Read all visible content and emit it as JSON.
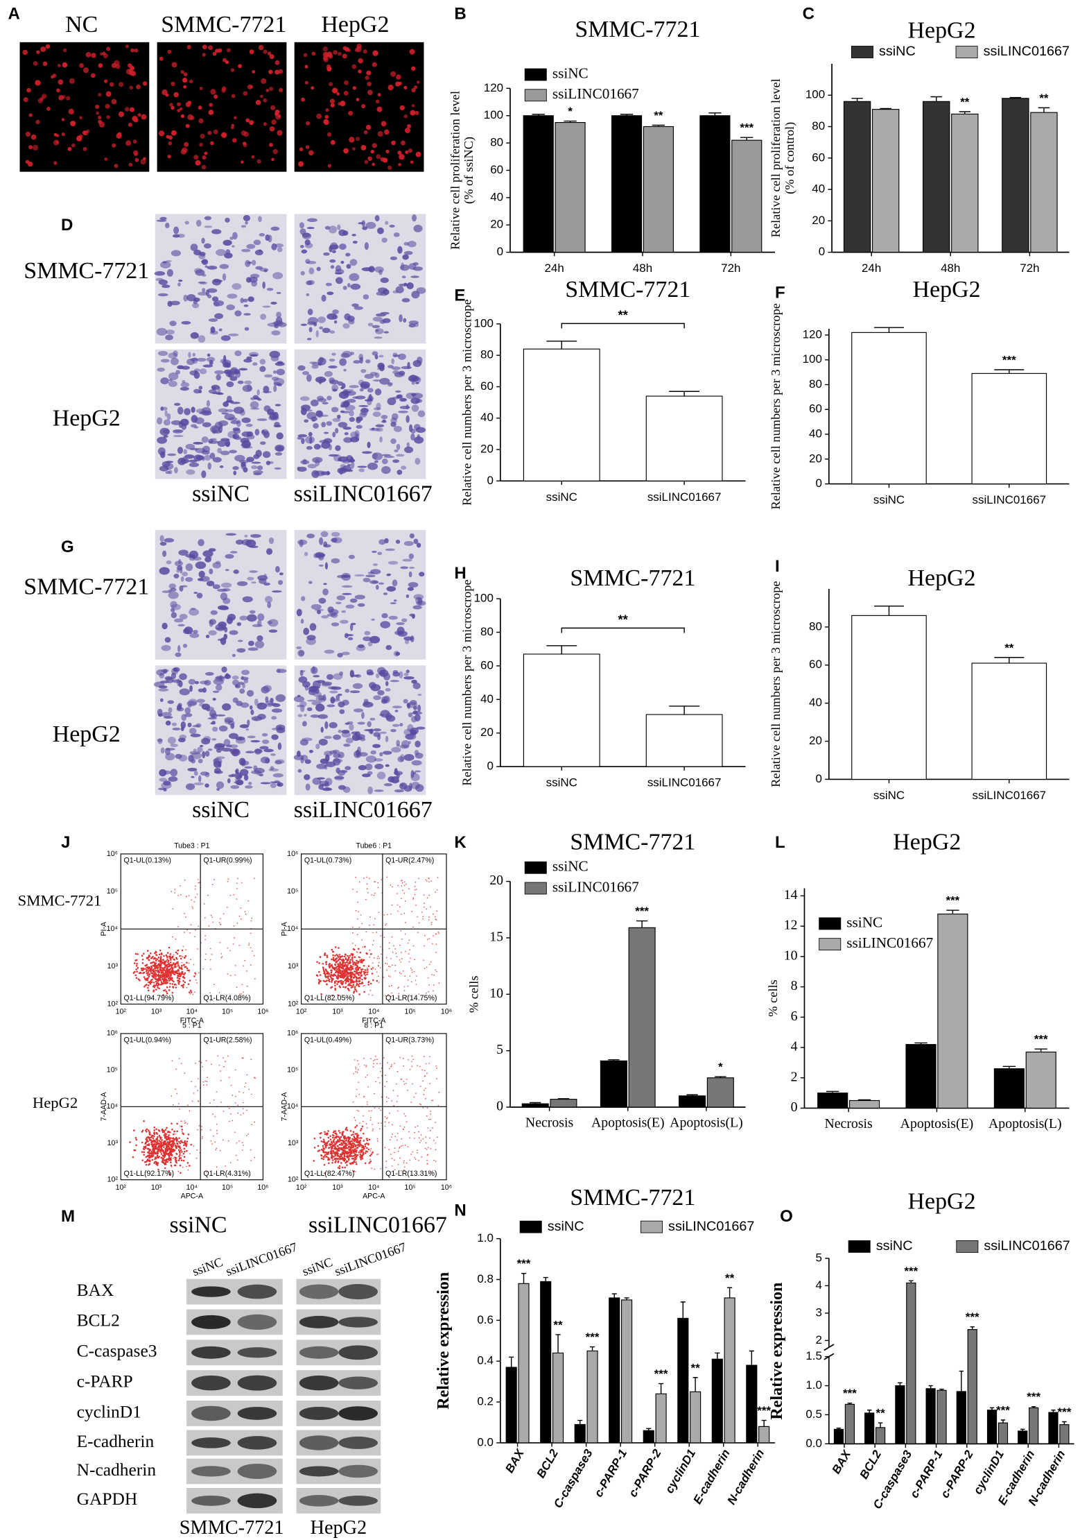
{
  "panel_labels": [
    "A",
    "B",
    "C",
    "D",
    "E",
    "F",
    "G",
    "H",
    "I",
    "J",
    "K",
    "L",
    "M",
    "N",
    "O"
  ],
  "images": {
    "A": {
      "labels": [
        "NC",
        "SMMC-7721",
        "HepG2"
      ]
    },
    "D": {
      "rows": [
        "SMMC-7721",
        "HepG2"
      ],
      "cols": [
        "ssiNC",
        "ssiLINC01667"
      ]
    },
    "G": {
      "rows": [
        "SMMC-7721",
        "HepG2"
      ],
      "cols": [
        "ssiNC",
        "ssiLINC01667"
      ]
    }
  },
  "flow": {
    "rows": [
      "SMMC-7721",
      "HepG2"
    ],
    "ticks": [
      "10²",
      "10³",
      "10⁴",
      "10⁵",
      "10⁶"
    ],
    "plots": [
      {
        "title": "Tube3 : P1",
        "xlabel": "FITC-A",
        "ylabel": "PI-A",
        "quadrants": [
          "Q1-UL(0.13%)",
          "Q1-UR(0.99%)",
          "Q1-LL(94.79%)",
          "Q1-LR(4.08%)"
        ]
      },
      {
        "title": "Tube6 : P1",
        "xlabel": "FITC-A",
        "ylabel": "PI-A",
        "quadrants": [
          "Q1-UL(0.73%)",
          "Q1-UR(2.47%)",
          "Q1-LL(82.05%)",
          "Q1-LR(14.75%)"
        ]
      },
      {
        "title": "5 : P1",
        "xlabel": "APC-A",
        "ylabel": "7-AAD-A",
        "quadrants": [
          "Q1-UL(0.94%)",
          "Q1-UR(2.58%)",
          "Q1-LL(92.17%)",
          "Q1-LR(4.31%)"
        ]
      },
      {
        "title": "8 : P1",
        "xlabel": "APC-A",
        "ylabel": "7-AAD-A",
        "quadrants": [
          "Q1-UL(0.49%)",
          "Q1-UR(3.73%)",
          "Q1-LL(82.47%)",
          "Q1-LR(13.31%)"
        ]
      }
    ]
  },
  "western": {
    "groups": [
      "ssiNC",
      "ssiLINC01667"
    ],
    "lanes": [
      "ssiNC",
      "ssiLINC01667"
    ],
    "proteins": [
      "BAX",
      "BCL2",
      "C-caspase3",
      "c-PARP",
      "cyclinD1",
      "E-cadherin",
      "N-cadherin",
      "GAPDH"
    ],
    "cells": [
      "SMMC-7721",
      "HepG2"
    ]
  },
  "chart_data": [
    {
      "type": "bar",
      "title": "SMMC-7721",
      "ylabel": [
        "Relative cell proliferation level",
        "(% of ssiNC)"
      ],
      "categories": [
        "24h",
        "48h",
        "72h"
      ],
      "series": [
        {
          "name": "ssiNC",
          "color": "#000000",
          "values": [
            100,
            100,
            100
          ],
          "errors": [
            1,
            1,
            2
          ]
        },
        {
          "name": "ssiLINC01667",
          "color": "#9a9a9a",
          "values": [
            95,
            92,
            82
          ],
          "errors": [
            1,
            1,
            2
          ]
        }
      ],
      "significance": [
        "*",
        "**",
        "***"
      ],
      "ylim": [
        0,
        120
      ],
      "yticks": [
        0,
        20,
        40,
        60,
        80,
        100,
        120
      ],
      "legend": "upper left"
    },
    {
      "type": "bar",
      "title": "HepG2",
      "ylabel": [
        "Relative cell proliferation level",
        "(% of control)"
      ],
      "categories": [
        "24h",
        "48h",
        "72h"
      ],
      "series": [
        {
          "name": "ssiNC",
          "color": "#333333",
          "values": [
            96,
            96,
            98
          ],
          "errors": [
            2,
            3,
            0.5
          ]
        },
        {
          "name": "ssiLINC01667",
          "color": "#aaaaaa",
          "values": [
            91,
            88,
            89
          ],
          "errors": [
            0.5,
            1.5,
            3
          ]
        }
      ],
      "significance": [
        null,
        "**",
        "**"
      ],
      "ylim": [
        0,
        120
      ],
      "yticks": [
        0,
        20,
        40,
        60,
        80,
        100
      ],
      "legend": "top"
    },
    {
      "type": "bar",
      "title": "SMMC-7721",
      "ylabel": [
        "Relative cell  numbers per 3 microscrope"
      ],
      "categories": [
        "ssiNC",
        "ssiLINC01667"
      ],
      "values": [
        84,
        54
      ],
      "errors": [
        5,
        3
      ],
      "color": "#ffffff",
      "significance": [
        null,
        "**"
      ],
      "bracket": true,
      "ylim": [
        0,
        100
      ],
      "yticks": [
        0,
        20,
        40,
        60,
        80,
        100
      ]
    },
    {
      "type": "bar",
      "title": "HepG2",
      "ylabel": [
        "Relative cell  numbers per 3 microscrope"
      ],
      "categories": [
        "ssiNC",
        "ssiLINC01667"
      ],
      "values": [
        122,
        89
      ],
      "errors": [
        4,
        3
      ],
      "color": "#ffffff",
      "significance": [
        null,
        "***"
      ],
      "bracket": false,
      "ylim": [
        0,
        125
      ],
      "yticks": [
        0,
        20,
        40,
        60,
        80,
        100,
        120
      ]
    },
    {
      "type": "bar",
      "title": "SMMC-7721",
      "ylabel": [
        "Relative cell  numbers per 3 microscrope"
      ],
      "categories": [
        "ssiNC",
        "ssiLINC01667"
      ],
      "values": [
        67,
        31
      ],
      "errors": [
        5,
        5
      ],
      "color": "#ffffff",
      "significance": [
        null,
        "**"
      ],
      "bracket": true,
      "ylim": [
        0,
        100
      ],
      "yticks": [
        0,
        20,
        40,
        60,
        80,
        100
      ]
    },
    {
      "type": "bar",
      "title": "HepG2",
      "ylabel": [
        "Relative cell  numbers per 3 microscrope"
      ],
      "categories": [
        "ssiNC",
        "ssiLINC01667"
      ],
      "values": [
        86,
        61
      ],
      "errors": [
        5,
        3
      ],
      "color": "#ffffff",
      "significance": [
        null,
        "**"
      ],
      "bracket": false,
      "ylim": [
        0,
        100
      ],
      "yticks": [
        0,
        20,
        40,
        60,
        80
      ]
    },
    {
      "type": "bar",
      "title": "SMMC-7721",
      "ylabel": [
        "% cells"
      ],
      "categories": [
        "Necrosis",
        "Apoptosis(E)",
        "Apoptosis(L)"
      ],
      "series": [
        {
          "name": "ssiNC",
          "color": "#000000",
          "values": [
            0.3,
            4.1,
            1.0
          ],
          "errors": [
            0.1,
            0.1,
            0.1
          ]
        },
        {
          "name": "ssiLINC01667",
          "color": "#777777",
          "values": [
            0.7,
            15.9,
            2.6
          ],
          "errors": [
            0.05,
            0.6,
            0.1
          ]
        }
      ],
      "significance": [
        null,
        "***",
        "*"
      ],
      "ylim": [
        0,
        20
      ],
      "yticks": [
        0,
        5,
        10,
        15,
        20
      ],
      "legend": "upper left"
    },
    {
      "type": "bar",
      "title": "HepG2",
      "ylabel": [
        "% cells"
      ],
      "categories": [
        "Necrosis",
        "Apoptosis(E)",
        "Apoptosis(L)"
      ],
      "series": [
        {
          "name": "ssiNC",
          "color": "#000000",
          "values": [
            1.0,
            4.2,
            2.6
          ],
          "errors": [
            0.1,
            0.1,
            0.15
          ]
        },
        {
          "name": "ssiLINC01667",
          "color": "#aaaaaa",
          "values": [
            0.5,
            12.8,
            3.7
          ],
          "errors": [
            0.05,
            0.25,
            0.2
          ]
        }
      ],
      "significance": [
        null,
        "***",
        "***"
      ],
      "ylim": [
        0,
        14.5
      ],
      "yticks": [
        0,
        2,
        4,
        6,
        8,
        10,
        12,
        14
      ],
      "legend": "upper left"
    },
    {
      "type": "bar",
      "title": "SMMC-7721",
      "ylabel": [
        "Relative expression"
      ],
      "categories": [
        "BAX",
        "BCL2",
        "C-caspase3",
        "c-PARP-1",
        "c-PARP-2",
        "cyclinD1",
        "E-cadherin",
        "N-cadherin"
      ],
      "series": [
        {
          "name": "ssiNC",
          "color": "#000000",
          "values": [
            0.37,
            0.79,
            0.09,
            0.71,
            0.06,
            0.61,
            0.41,
            0.38
          ],
          "errors": [
            0.05,
            0.02,
            0.02,
            0.02,
            0.01,
            0.08,
            0.03,
            0.07
          ]
        },
        {
          "name": "ssiLINC01667",
          "color": "#aaaaaa",
          "values": [
            0.78,
            0.44,
            0.45,
            0.7,
            0.24,
            0.25,
            0.71,
            0.08
          ],
          "errors": [
            0.05,
            0.09,
            0.02,
            0.01,
            0.05,
            0.07,
            0.05,
            0.03
          ]
        }
      ],
      "significance": [
        "***",
        "**",
        "***",
        null,
        "***",
        "**",
        "**",
        "***"
      ],
      "ylim": [
        0,
        1.0
      ],
      "yticks": [
        {
          "value": 0,
          "label": "0.0"
        },
        0.2,
        0.4,
        0.6,
        0.8,
        {
          "value": 1,
          "label": "1.0"
        }
      ],
      "legend": "top",
      "xtick_rotation": -60
    },
    {
      "type": "bar",
      "title": "HepG2",
      "ylabel": [
        "Relative expression"
      ],
      "categories": [
        "BAX",
        "BCL2",
        "C-caspase3",
        "c-PARP-1",
        "c-PARP-2",
        "cyclinD1",
        "E-cadherin",
        "N-cadherin"
      ],
      "series": [
        {
          "name": "ssiNC",
          "color": "#000000",
          "values": [
            0.25,
            0.53,
            1.0,
            0.95,
            0.9,
            0.58,
            0.22,
            0.54
          ],
          "errors": [
            0.02,
            0.05,
            0.05,
            0.05,
            0.35,
            0.04,
            0.03,
            0.04
          ]
        },
        {
          "name": "ssiLINC01667",
          "color": "#777777",
          "values": [
            0.68,
            0.28,
            4.1,
            0.92,
            2.4,
            0.36,
            0.62,
            0.33
          ],
          "errors": [
            0.02,
            0.08,
            0.08,
            0.02,
            0.1,
            0.05,
            0.02,
            0.05
          ]
        }
      ],
      "significance": [
        "***",
        "**",
        "***",
        null,
        "***",
        "***",
        "***",
        "***"
      ],
      "ylim": [
        0,
        5
      ],
      "ybreak": [
        1.5,
        1.75
      ],
      "yticks": [
        {
          "value": 0,
          "label": "0.0"
        },
        0.5,
        {
          "value": 1,
          "label": "1.0"
        },
        1.5,
        2,
        3,
        4,
        5
      ],
      "legend": "top",
      "xtick_rotation": -60
    }
  ]
}
